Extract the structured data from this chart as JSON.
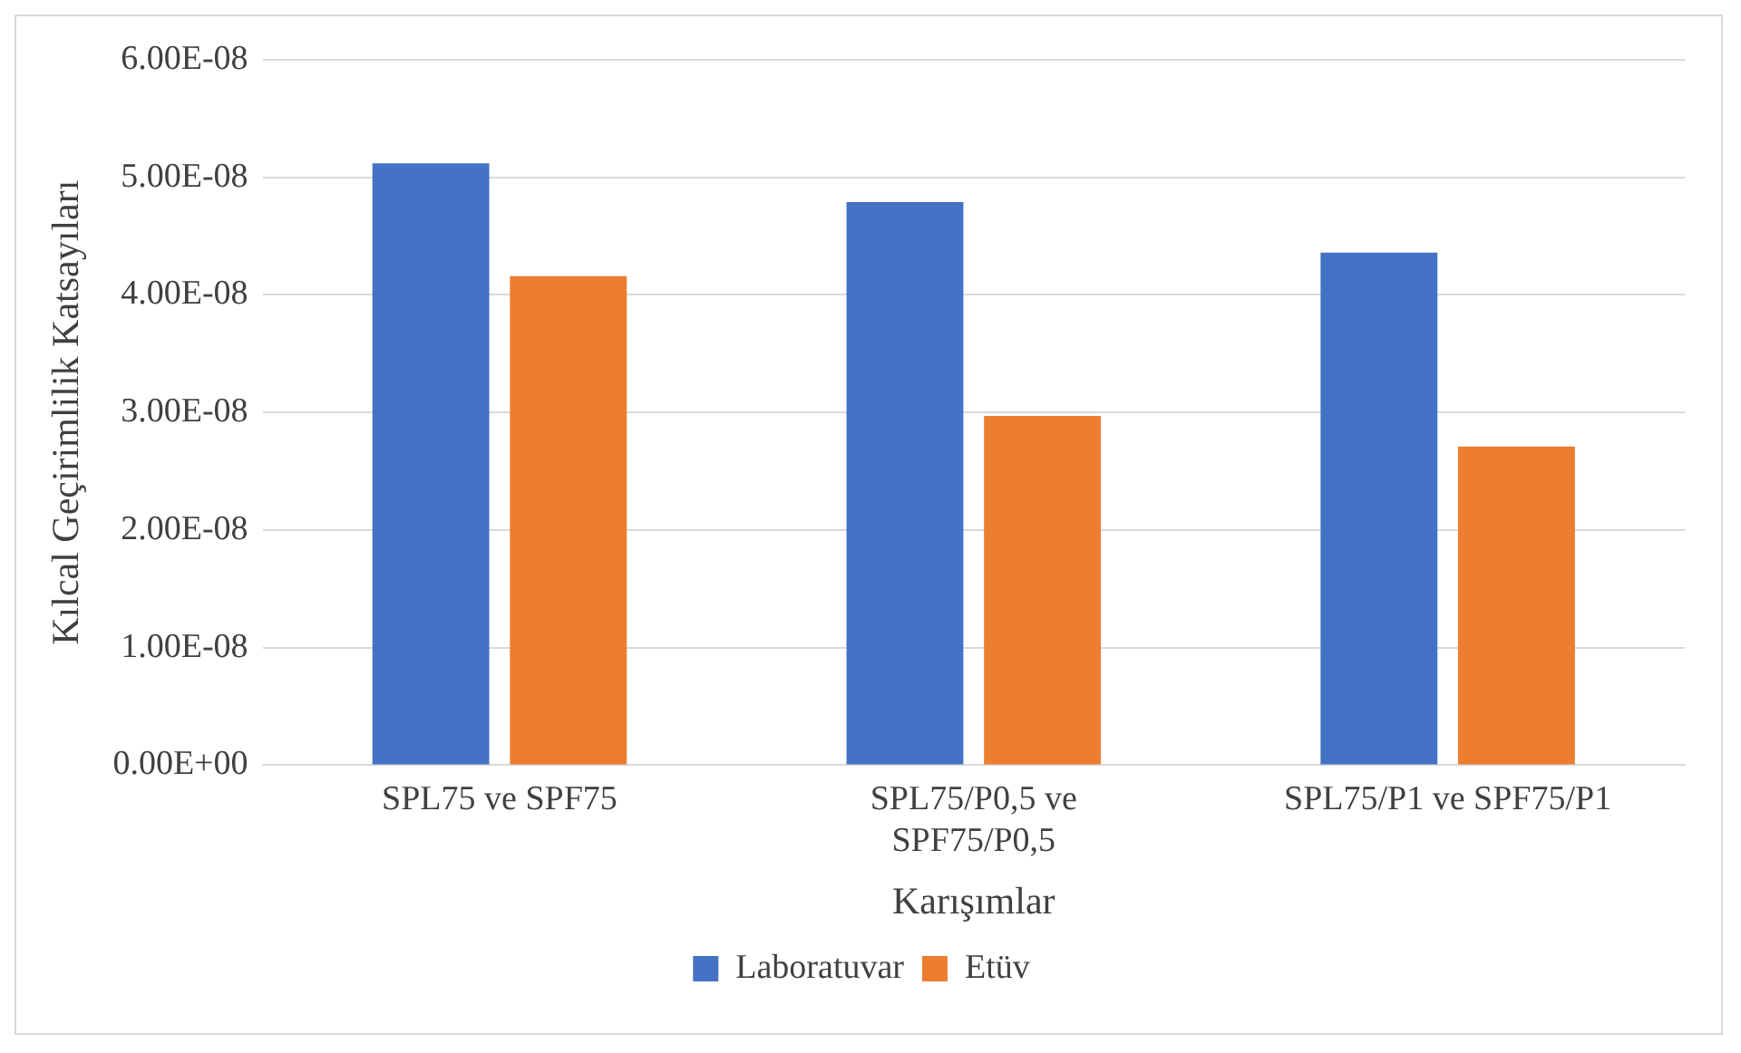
{
  "chart_data": {
    "type": "bar",
    "xlabel": "Karışımlar",
    "ylabel": "Kılcal Geçirimlilik Katsayıları",
    "categories": [
      "SPL75 ve SPF75",
      "SPL75/P0,5 ve SPF75/P0,5",
      "SPL75/P1 ve SPF75/P1"
    ],
    "series": [
      {
        "name": "Laboratuvar",
        "color": "#4472c4",
        "values": [
          5.12e-08,
          4.79e-08,
          4.36e-08
        ]
      },
      {
        "name": "Etüv",
        "color": "#ed7d31",
        "values": [
          4.16e-08,
          2.97e-08,
          2.71e-08
        ]
      }
    ],
    "ylim": [
      0,
      6e-08
    ],
    "yticks": [
      {
        "value": 0,
        "label": "0.00E+00"
      },
      {
        "value": 1e-08,
        "label": "1.00E-08"
      },
      {
        "value": 2e-08,
        "label": "2.00E-08"
      },
      {
        "value": 3e-08,
        "label": "3.00E-08"
      },
      {
        "value": 4e-08,
        "label": "4.00E-08"
      },
      {
        "value": 5e-08,
        "label": "5.00E-08"
      },
      {
        "value": 6e-08,
        "label": "6.00E-08"
      }
    ],
    "grid": "y",
    "legend": "bottom"
  }
}
